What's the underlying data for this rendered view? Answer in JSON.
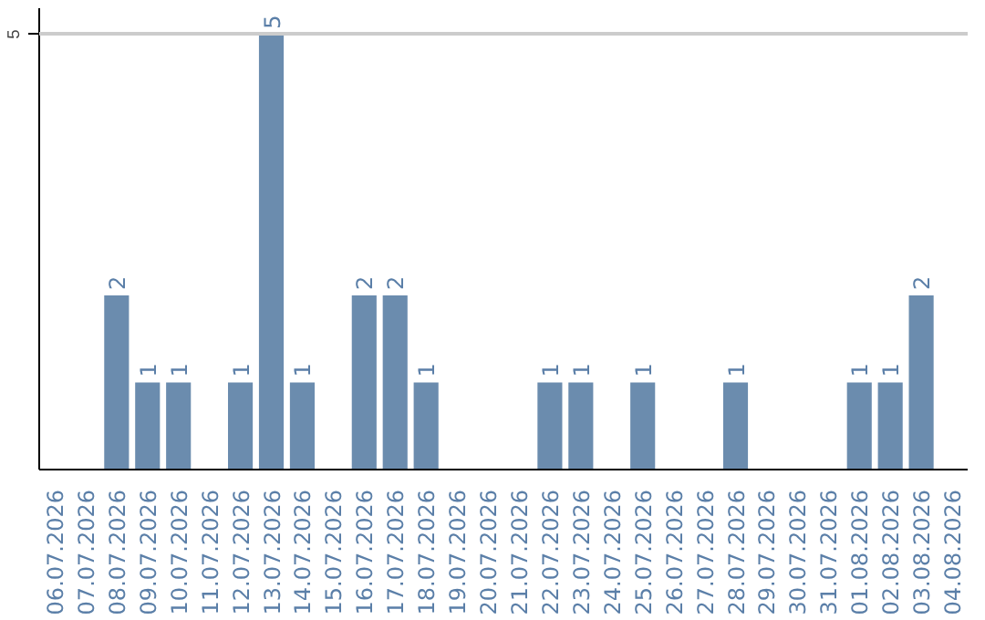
{
  "chart_data": {
    "type": "bar",
    "categories": [
      "06.07.2026",
      "07.07.2026",
      "08.07.2026",
      "09.07.2026",
      "10.07.2026",
      "11.07.2026",
      "12.07.2026",
      "13.07.2026",
      "14.07.2026",
      "15.07.2026",
      "16.07.2026",
      "17.07.2026",
      "18.07.2026",
      "19.07.2026",
      "20.07.2026",
      "21.07.2026",
      "22.07.2026",
      "23.07.2026",
      "24.07.2026",
      "25.07.2026",
      "26.07.2026",
      "27.07.2026",
      "28.07.2026",
      "29.07.2026",
      "30.07.2026",
      "31.07.2026",
      "01.08.2026",
      "02.08.2026",
      "03.08.2026",
      "04.08.2026"
    ],
    "values": [
      0,
      0,
      2,
      1,
      1,
      0,
      1,
      5,
      1,
      0,
      2,
      2,
      1,
      0,
      0,
      0,
      1,
      1,
      0,
      1,
      0,
      0,
      1,
      0,
      0,
      0,
      1,
      1,
      2,
      0
    ],
    "value_labels": [
      null,
      null,
      "2",
      "1",
      "1",
      null,
      "1",
      "5",
      "1",
      null,
      "2",
      "2",
      "1",
      null,
      null,
      null,
      "1",
      "1",
      null,
      "1",
      null,
      null,
      "1",
      null,
      null,
      null,
      "1",
      "1",
      "2",
      null
    ],
    "color": "#6b8cae",
    "ylim": [
      0,
      5.3
    ],
    "yticks": [
      5
    ],
    "grid": "y"
  }
}
